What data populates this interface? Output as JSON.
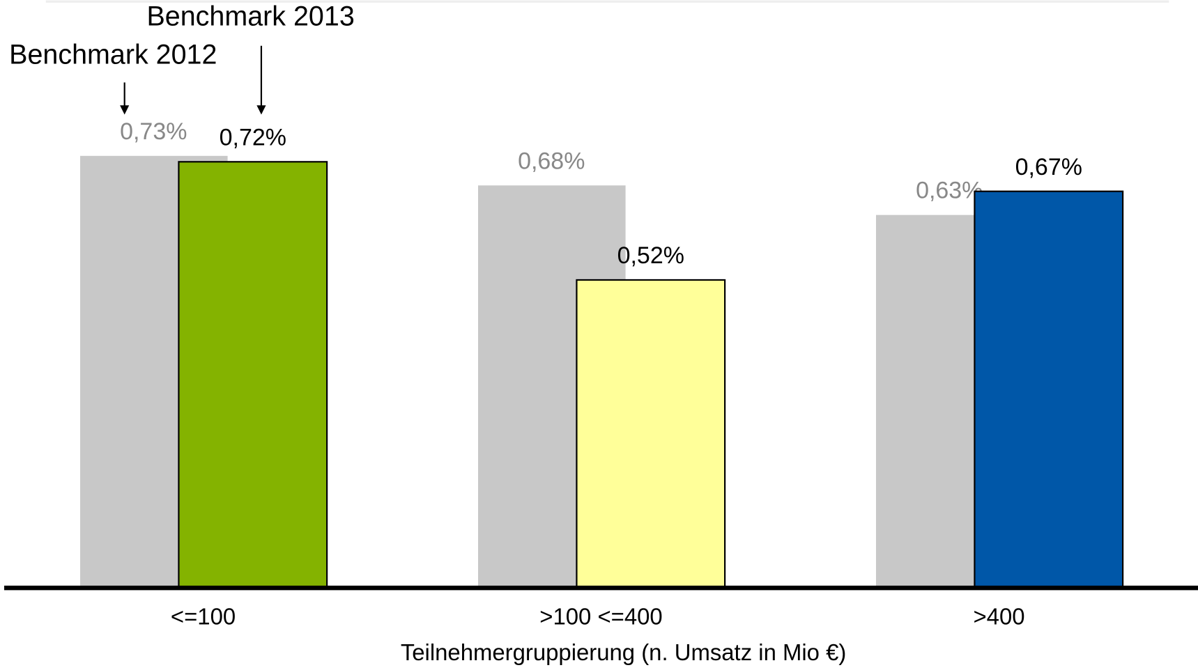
{
  "chart_data": {
    "type": "bar",
    "categories": [
      "<=100",
      ">100 <=400",
      ">400"
    ],
    "x_label": "Teilnehmergruppierung (n. Umsatz in Mio €)",
    "series": [
      {
        "name": "Benchmark 2012",
        "color": "#c8c8c8",
        "label_color": "#888888",
        "values": [
          0.73,
          0.68,
          0.63
        ],
        "value_labels": [
          "0,73%",
          "0,68%",
          "0,63%"
        ]
      },
      {
        "name": "Benchmark 2013",
        "colors": [
          "#84b300",
          "#ffff99",
          "#0057a8"
        ],
        "label_color": "#000000",
        "values": [
          0.72,
          0.52,
          0.67
        ],
        "value_labels": [
          "0,72%",
          "0,52%",
          "0,67%"
        ]
      }
    ],
    "ylim": [
      0,
      0.8
    ]
  }
}
